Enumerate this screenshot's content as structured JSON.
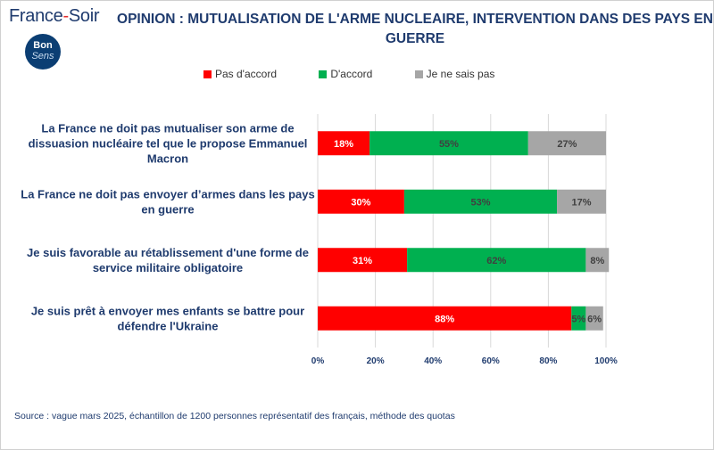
{
  "header": {
    "brand_main": "France",
    "brand_dash": "-",
    "brand_tail": "Soir",
    "badge_line1": "Bon",
    "badge_line2": "Sens",
    "title": "OPINION : MUTUALISATION DE L'ARME NUCLEAIRE, INTERVENTION DANS DES PAYS EN GUERRE"
  },
  "footer": {
    "source": "Source : vague mars 2025, échantillon de 1200 personnes représentatif des français, méthode des quotas"
  },
  "chart_data": {
    "type": "bar",
    "orientation": "horizontal",
    "stacked": true,
    "title": "OPINION : MUTUALISATION DE L'ARME NUCLEAIRE, INTERVENTION DANS DES PAYS EN GUERRE",
    "categories": [
      [
        "La France ne doit pas mutualiser son arme de",
        "dissuasion nucléaire tel que le propose Emmanuel",
        "Macron"
      ],
      [
        "La France ne doit pas envoyer d’armes dans les pays",
        "en guerre"
      ],
      [
        "Je suis favorable au rétablissement d'une forme de",
        "service militaire obligatoire"
      ],
      [
        "Je suis prêt à envoyer mes enfants se battre pour",
        "défendre l'Ukraine"
      ]
    ],
    "series": [
      {
        "name": "Pas d'accord",
        "color": "#ff0000",
        "label_color": "#ffffff",
        "values": [
          18,
          30,
          31,
          88
        ]
      },
      {
        "name": "D'accord",
        "color": "#00b050",
        "label_color": "#404040",
        "values": [
          55,
          53,
          62,
          5
        ]
      },
      {
        "name": "Je ne sais pas",
        "color": "#a6a6a6",
        "label_color": "#404040",
        "values": [
          27,
          17,
          8,
          6
        ]
      }
    ],
    "xlim": [
      0,
      100
    ],
    "xticks": [
      0,
      20,
      40,
      60,
      80,
      100
    ],
    "tick_suffix": "%",
    "value_suffix": "%",
    "grid": true,
    "legend_position": "top"
  }
}
